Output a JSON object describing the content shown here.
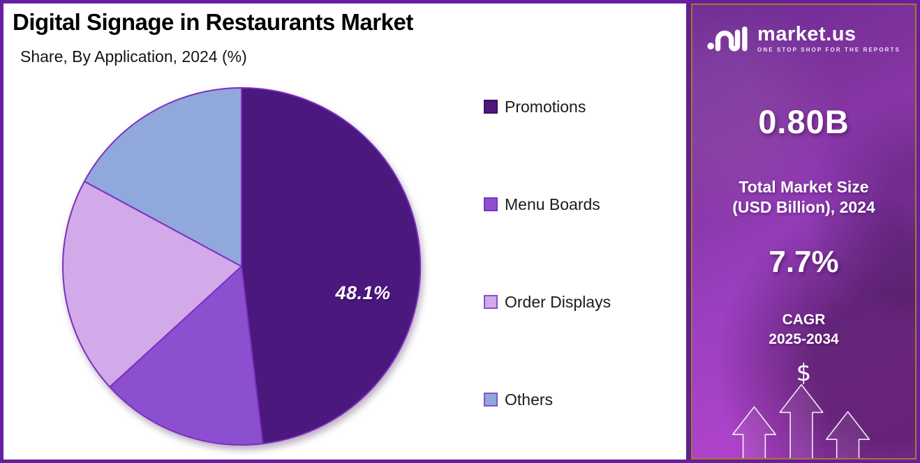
{
  "chart_data": {
    "type": "pie",
    "title": "Digital Signage in Restaurants Market",
    "subtitle": "Share, By Application, 2024 (%)",
    "unit": "%",
    "start_angle_deg": 0,
    "direction": "clockwise",
    "legend_position": "right",
    "slice_stroke": "#7d2fc0",
    "slices": [
      {
        "label": "Promotions",
        "value": 48.1,
        "estimated": false,
        "color": "#4b187e",
        "swatch_border": "#3a1263",
        "data_label": "48.1%"
      },
      {
        "label": "Menu Boards",
        "value": 15.1,
        "estimated": true,
        "color": "#8b4fd0",
        "swatch_border": "#7d33c4",
        "data_label": ""
      },
      {
        "label": "Order Displays",
        "value": 19.7,
        "estimated": true,
        "color": "#d2a9e9",
        "swatch_border": "#8b4fd0",
        "data_label": ""
      },
      {
        "label": "Others",
        "value": 17.1,
        "estimated": true,
        "color": "#90a8dc",
        "swatch_border": "#8b4fd0",
        "data_label": ""
      }
    ]
  },
  "sidebar": {
    "brand": {
      "name": "market.us",
      "tagline": "ONE STOP SHOP FOR THE REPORTS"
    },
    "market_size": {
      "value": "0.80B",
      "label_line1": "Total Market Size",
      "label_line2": "(USD Billion), 2024"
    },
    "cagr": {
      "value": "7.7%",
      "label_line1": "CAGR",
      "label_line2": "2025-2034"
    },
    "dollar": "$"
  },
  "colors": {
    "page_border": "#671fa1",
    "sidebar_divider": "#5e2093",
    "sidebar_border": "#a87a20",
    "sidebar_gradient_top": "#6d2b92",
    "sidebar_gradient_bottom": "#a83bc4",
    "pie_label_text": "#ffffff",
    "legend_text": "#1b1b1b"
  }
}
